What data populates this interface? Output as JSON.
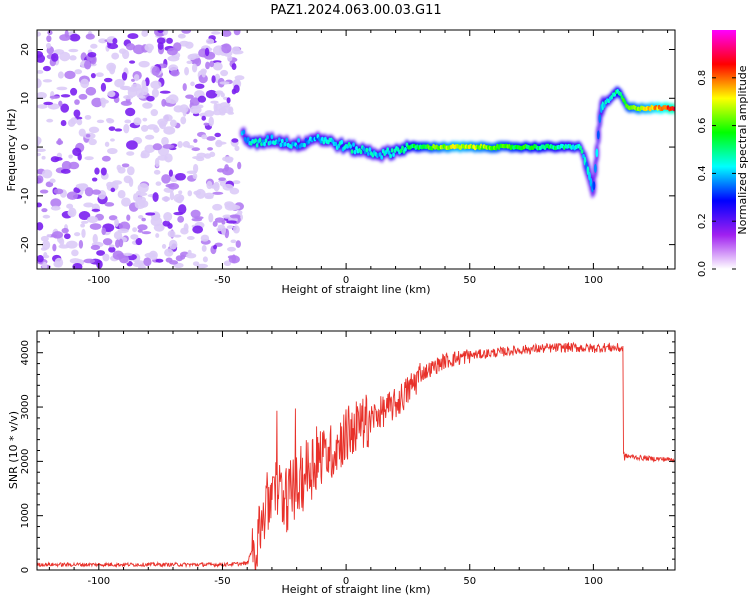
{
  "figure": {
    "title": "PAZ1.2024.063.00.03.G11"
  },
  "chart_data": [
    {
      "type": "heatmap",
      "xlabel": "Height of straight line (km)",
      "ylabel": "Frequency (Hz)",
      "xlim": [
        -125,
        133
      ],
      "ylim": [
        -25,
        24
      ],
      "xticks": [
        -100,
        -50,
        0,
        50,
        100
      ],
      "yticks": [
        -20,
        -10,
        0,
        10,
        20
      ],
      "colorbar": {
        "label": "Normalized spectral amplitude",
        "range": [
          0,
          1
        ],
        "ticks": [
          0.0,
          0.2,
          0.4,
          0.6,
          0.8
        ],
        "colormap": [
          "#ffffff",
          "#a020f0",
          "#0000ff",
          "#00ffff",
          "#00ff00",
          "#ffff00",
          "#ff0000",
          "#ff00ff"
        ]
      },
      "noise_region_x": [
        -125,
        -42
      ],
      "trace": [
        {
          "x": -42,
          "freq": 3.0,
          "amp": 0.35
        },
        {
          "x": -38,
          "freq": 0.5,
          "amp": 0.45
        },
        {
          "x": -30,
          "freq": 1.5,
          "amp": 0.4
        },
        {
          "x": -20,
          "freq": 0.5,
          "amp": 0.4
        },
        {
          "x": -12,
          "freq": 2.0,
          "amp": 0.38
        },
        {
          "x": 0,
          "freq": 0.0,
          "amp": 0.45
        },
        {
          "x": 15,
          "freq": -1.5,
          "amp": 0.4
        },
        {
          "x": 25,
          "freq": 0.0,
          "amp": 0.5
        },
        {
          "x": 45,
          "freq": 0.0,
          "amp": 0.7
        },
        {
          "x": 70,
          "freq": 0.0,
          "amp": 0.55
        },
        {
          "x": 95,
          "freq": 0.0,
          "amp": 0.45
        },
        {
          "x": 100,
          "freq": -9.0,
          "amp": 0.35
        },
        {
          "x": 103,
          "freq": 8.0,
          "amp": 0.4
        },
        {
          "x": 110,
          "freq": 11.5,
          "amp": 0.5
        },
        {
          "x": 114,
          "freq": 8.0,
          "amp": 0.6
        },
        {
          "x": 133,
          "freq": 8.0,
          "amp": 0.85
        }
      ]
    },
    {
      "type": "line",
      "xlabel": "Height of straight line (km)",
      "ylabel": "SNR (10 * v/v)",
      "xlim": [
        -125,
        133
      ],
      "ylim": [
        0,
        4400
      ],
      "xticks": [
        -100,
        -50,
        0,
        50,
        100
      ],
      "yticks": [
        0,
        1000,
        2000,
        3000,
        4000
      ],
      "series": [
        {
          "color": "#e8312a",
          "x": [
            -125,
            -100,
            -75,
            -50,
            -40,
            -37,
            -32,
            -28,
            -25,
            -20,
            -15,
            -10,
            -5,
            0,
            10,
            20,
            25,
            30,
            40,
            50,
            60,
            70,
            80,
            90,
            100,
            105,
            112,
            113,
            120,
            133
          ],
          "y": [
            100,
            100,
            100,
            100,
            120,
            500,
            1200,
            1500,
            1300,
            1500,
            1900,
            2100,
            2200,
            2500,
            2800,
            3050,
            3300,
            3600,
            3850,
            3950,
            4000,
            4050,
            4080,
            4100,
            4080,
            4100,
            4080,
            2100,
            2060,
            2030
          ]
        }
      ]
    }
  ]
}
